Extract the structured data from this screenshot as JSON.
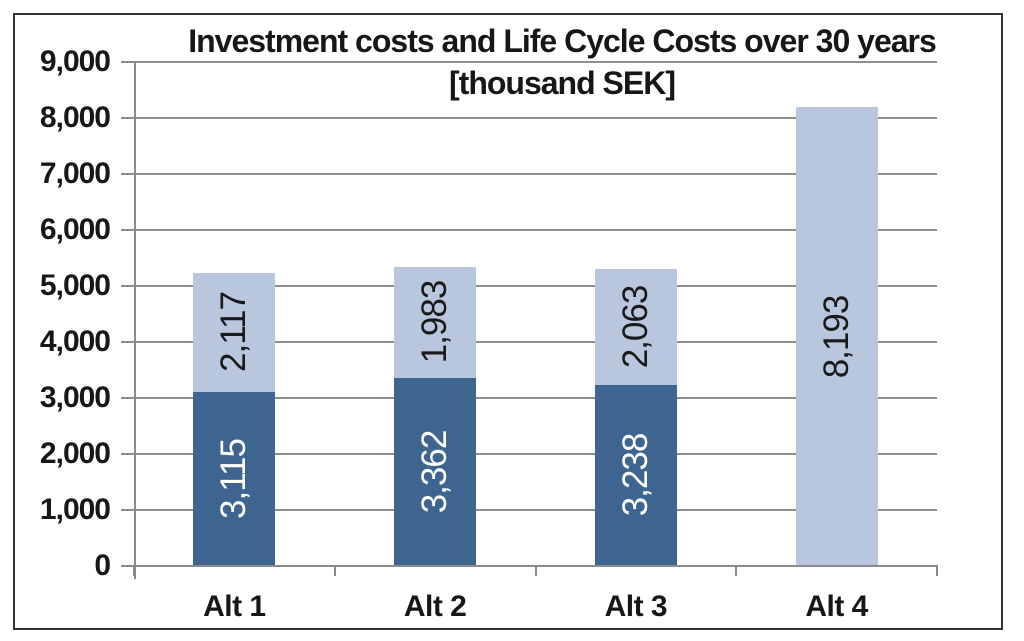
{
  "chart_data": {
    "type": "bar",
    "stacked": true,
    "title_line1": "Investment costs and Life Cycle Costs over 30 years",
    "title_line2": "[thousand SEK]",
    "categories": [
      "Alt 1",
      "Alt 2",
      "Alt 3",
      "Alt 4"
    ],
    "series": [
      {
        "name": "Investment costs",
        "color": "#3e6490",
        "label_color": "#ffffff",
        "values": [
          3115,
          3362,
          3238,
          0
        ],
        "labels": [
          "3,115",
          "3,362",
          "3,238",
          ""
        ]
      },
      {
        "name": "Life Cycle Costs",
        "color": "#b8c6de",
        "label_color": "#1a1a1a",
        "values": [
          2117,
          1983,
          2063,
          8193
        ],
        "labels": [
          "2,117",
          "1,983",
          "2,063",
          "8,193"
        ]
      }
    ],
    "totals": [
      5232,
      5345,
      5301,
      8193
    ],
    "ylim": [
      0,
      9000
    ],
    "ytick_step": 1000,
    "ytick_labels": [
      "0",
      "1,000",
      "2,000",
      "3,000",
      "4,000",
      "5,000",
      "6,000",
      "7,000",
      "8,000",
      "9,000"
    ],
    "grid": true,
    "legend": "none",
    "value_label_rotation": -90
  },
  "colors": {
    "background": "#ffffff",
    "frame_border": "#333333",
    "gridline": "#8e8e8e",
    "axis": "#8a8a8a",
    "text": "#171717",
    "bar_dark": "#3e6490",
    "bar_light": "#b8c6de"
  }
}
